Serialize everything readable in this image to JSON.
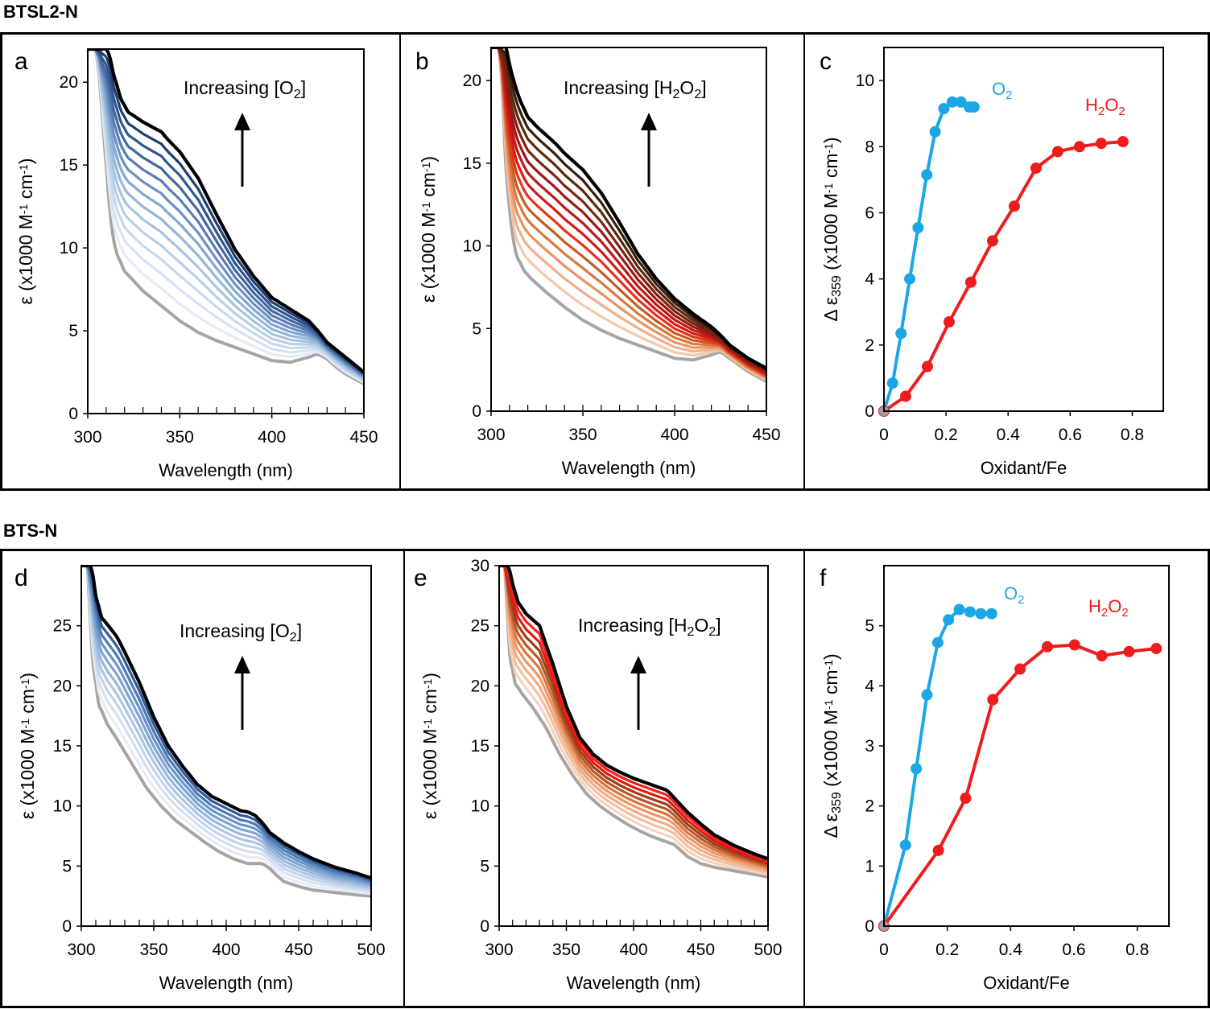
{
  "groups": [
    {
      "title": "BTSL2-N"
    },
    {
      "title": "BTS-N"
    }
  ],
  "colors": {
    "o2": "#1ba6e6",
    "h2o2": "#ee1c1c",
    "gray": "#a8a4a4",
    "black": "#000000"
  },
  "chart_data": [
    {
      "panel": "a",
      "type": "line",
      "xlabel": "Wavelength (nm)",
      "ylabel": "ε (x1000 M⁻¹ cm⁻¹)",
      "xlim": [
        300,
        450
      ],
      "ylim": [
        0,
        22
      ],
      "xticks": [
        "300",
        "350",
        "400",
        "450"
      ],
      "yticks": [
        "0",
        "5",
        "10",
        "15",
        "20"
      ],
      "annotation": {
        "text": "Increasing [O",
        "sub": "2",
        "close": "]"
      },
      "palette": [
        "#e4ebf6",
        "#d6e2f1",
        "#c8d9ec",
        "#b8cfe6",
        "#a6c3df",
        "#94b6d8",
        "#82a8d0",
        "#6e8fc2",
        "#5a7bb4",
        "#43679f",
        "#2d5790",
        "#1f3f70"
      ],
      "base": {
        "x": [
          305,
          310,
          313,
          316,
          320,
          325,
          330,
          340,
          350,
          360,
          370,
          380,
          390,
          400,
          410,
          420,
          425,
          430,
          435,
          440,
          450
        ],
        "y": [
          22,
          15,
          11,
          9.6,
          8.6,
          8,
          7.4,
          6.5,
          5.6,
          4.9,
          4.4,
          4,
          3.6,
          3.2,
          3.1,
          3.4,
          3.6,
          3.3,
          2.8,
          2.4,
          1.8
        ]
      },
      "top": {
        "x": [
          311,
          314,
          318,
          322,
          326,
          330,
          335,
          340,
          343,
          350,
          360,
          370,
          380,
          390,
          400,
          410,
          420,
          425,
          430,
          440,
          450
        ],
        "y": [
          22,
          20.5,
          19,
          18.2,
          17.9,
          17.6,
          17.3,
          17,
          16.6,
          15.8,
          14.2,
          12,
          9.9,
          8.3,
          7,
          6.3,
          5.6,
          5,
          4.3,
          3.4,
          2.5
        ]
      }
    },
    {
      "panel": "b",
      "type": "line",
      "xlabel": "Wavelength (nm)",
      "ylabel": "ε (x1000 M⁻¹ cm⁻¹)",
      "xlim": [
        300,
        450
      ],
      "ylim": [
        0,
        22
      ],
      "xticks": [
        "300",
        "350",
        "400",
        "450"
      ],
      "yticks": [
        "0",
        "5",
        "10",
        "15",
        "20"
      ],
      "annotation": {
        "text": "Increasing [H",
        "sub": "2",
        "mid": "O",
        "sub2": "2",
        "close": "]"
      },
      "palette": [
        "#f7c6ab",
        "#f2ad8a",
        "#ec9162",
        "#d8783e",
        "#c45a22",
        "#e8301b",
        "#d31a18",
        "#b81a1a",
        "#9c1717",
        "#7a2410",
        "#5a2a10",
        "#3a1c0c"
      ],
      "base": {
        "x": [
          305,
          308,
          311,
          314,
          318,
          322,
          330,
          340,
          350,
          360,
          370,
          380,
          390,
          400,
          410,
          420,
          425,
          430,
          440,
          450
        ],
        "y": [
          22,
          15,
          11,
          9.4,
          8.5,
          8,
          7.2,
          6.3,
          5.5,
          4.9,
          4.4,
          4,
          3.6,
          3.2,
          3.1,
          3.4,
          3.6,
          3.2,
          2.4,
          1.8
        ]
      },
      "top": {
        "x": [
          308,
          311,
          315,
          320,
          325,
          330,
          335,
          340,
          350,
          360,
          370,
          380,
          390,
          400,
          410,
          420,
          425,
          430,
          440,
          450
        ],
        "y": [
          22,
          20.5,
          19,
          17.8,
          17.2,
          16.7,
          16.2,
          15.6,
          14.6,
          13.2,
          11.4,
          9.5,
          8,
          6.8,
          5.9,
          5.1,
          4.6,
          4,
          3.2,
          2.6
        ]
      }
    },
    {
      "panel": "c",
      "type": "line",
      "xlabel": "Oxidant/Fe",
      "ylabel": "Δ ε₃₅₉ (x1000 M⁻¹ cm⁻¹)",
      "xlim": [
        0,
        0.9
      ],
      "ylim": [
        0,
        11
      ],
      "xticks": [
        "0",
        "0.2",
        "0.4",
        "0.6",
        "0.8"
      ],
      "yticks": [
        "0",
        "2",
        "4",
        "6",
        "8",
        "10"
      ],
      "series": [
        {
          "name": "O₂",
          "label": "O",
          "sub": "2",
          "color_key": "o2",
          "x": [
            0,
            0.028,
            0.055,
            0.083,
            0.11,
            0.138,
            0.165,
            0.193,
            0.22,
            0.248,
            0.275,
            0.29
          ],
          "y": [
            0,
            0.85,
            2.35,
            4.0,
            5.55,
            7.15,
            8.45,
            9.15,
            9.35,
            9.35,
            9.2,
            9.2
          ]
        },
        {
          "name": "H₂O₂",
          "label": "H",
          "sub": "2",
          "mid": "O",
          "sub2": "2",
          "color_key": "h2o2",
          "x": [
            0,
            0.07,
            0.14,
            0.21,
            0.28,
            0.35,
            0.42,
            0.49,
            0.56,
            0.63,
            0.7,
            0.77
          ],
          "y": [
            0,
            0.45,
            1.35,
            2.7,
            3.9,
            5.15,
            6.2,
            7.35,
            7.85,
            8.0,
            8.1,
            8.15
          ]
        }
      ]
    },
    {
      "panel": "d",
      "type": "line",
      "xlabel": "Wavelength (nm)",
      "ylabel": "ε (x1000 M⁻¹ cm⁻¹)",
      "xlim": [
        300,
        500
      ],
      "ylim": [
        0,
        30
      ],
      "xticks": [
        "300",
        "350",
        "400",
        "450",
        "500"
      ],
      "yticks": [
        "0",
        "5",
        "10",
        "15",
        "20",
        "25"
      ],
      "annotation": {
        "text": "Increasing [O",
        "sub": "2",
        "close": "]"
      },
      "palette": [
        "#e6ecf7",
        "#d4e0f1",
        "#c2d4ea",
        "#aec6e3",
        "#98b6db",
        "#80a5d2",
        "#6b94c8",
        "#4d79b5",
        "#2f5d99"
      ],
      "base": {
        "x": [
          304,
          308,
          312,
          318,
          325,
          335,
          345,
          355,
          365,
          375,
          385,
          395,
          405,
          415,
          425,
          430,
          435,
          440,
          450,
          460,
          475,
          490,
          500
        ],
        "y": [
          30,
          22,
          18.5,
          16.8,
          15.5,
          13.5,
          11.5,
          10,
          8.8,
          7.9,
          7,
          6.2,
          5.6,
          5.2,
          5.2,
          4.8,
          4.2,
          3.7,
          3.3,
          3,
          2.8,
          2.6,
          2.5
        ]
      },
      "top": {
        "x": [
          307,
          310,
          314,
          320,
          325,
          330,
          340,
          350,
          360,
          370,
          380,
          390,
          400,
          410,
          415,
          420,
          425,
          430,
          440,
          450,
          460,
          475,
          490,
          500
        ],
        "y": [
          30,
          27.5,
          25.7,
          24.8,
          24,
          22.8,
          20.3,
          17.4,
          15,
          13.3,
          11.8,
          10.8,
          10.2,
          9.6,
          9.5,
          9.2,
          8.6,
          7.8,
          6.9,
          6.2,
          5.6,
          4.9,
          4.4,
          4.0
        ]
      }
    },
    {
      "panel": "e",
      "type": "line",
      "xlabel": "Wavelength (nm)",
      "ylabel": "ε (x1000 M⁻¹ cm⁻¹)",
      "xlim": [
        300,
        500
      ],
      "ylim": [
        0,
        30
      ],
      "xticks": [
        "300",
        "350",
        "400",
        "450",
        "500"
      ],
      "yticks": [
        "0",
        "5",
        "10",
        "15",
        "20",
        "25",
        "30"
      ],
      "annotation": {
        "text": "Increasing [H",
        "sub": "2",
        "mid": "O",
        "sub2": "2",
        "close": "]"
      },
      "palette": [
        "#f8d2bc",
        "#f4bf9f",
        "#efac84",
        "#e8986a",
        "#d9753f",
        "#b8552a",
        "#9a3e1a",
        "#e01a14",
        "#ff1e1e"
      ],
      "base": {
        "x": [
          304,
          308,
          312,
          318,
          325,
          335,
          345,
          355,
          365,
          375,
          385,
          395,
          405,
          415,
          425,
          430,
          435,
          440,
          450,
          460,
          475,
          490,
          500
        ],
        "y": [
          30,
          22.5,
          20.2,
          19.2,
          18.2,
          16.5,
          14.3,
          12.5,
          11,
          10,
          9.2,
          8.5,
          7.9,
          7.4,
          7,
          6.8,
          6.3,
          5.8,
          5.2,
          4.9,
          4.6,
          4.3,
          4.1
        ]
      },
      "top": {
        "x": [
          307,
          310,
          314,
          320,
          325,
          330,
          340,
          350,
          360,
          370,
          380,
          390,
          400,
          410,
          420,
          425,
          430,
          440,
          450,
          460,
          475,
          490,
          500
        ],
        "y": [
          30,
          28.5,
          27,
          26,
          25.5,
          25,
          21.8,
          18.3,
          15.7,
          14.3,
          13.4,
          12.8,
          12.3,
          11.9,
          11.5,
          11.3,
          10.7,
          9.5,
          8.5,
          7.6,
          6.7,
          6.0,
          5.6
        ]
      }
    },
    {
      "panel": "f",
      "type": "line",
      "xlabel": "Oxidant/Fe",
      "ylabel": "Δ ε₃₅₉ (x1000 M⁻¹ cm⁻¹)",
      "xlim": [
        0,
        0.9
      ],
      "ylim": [
        0,
        6
      ],
      "xticks": [
        "0",
        "0.2",
        "0.4",
        "0.6",
        "0.8"
      ],
      "yticks": [
        "0",
        "1",
        "2",
        "3",
        "4",
        "5"
      ],
      "series": [
        {
          "name": "O₂",
          "label": "O",
          "sub": "2",
          "color_key": "o2",
          "x": [
            0,
            0.068,
            0.102,
            0.136,
            0.17,
            0.204,
            0.238,
            0.272,
            0.306,
            0.34
          ],
          "y": [
            0,
            1.35,
            2.62,
            3.85,
            4.72,
            5.1,
            5.27,
            5.23,
            5.2,
            5.2
          ]
        },
        {
          "name": "H₂O₂",
          "label": "H",
          "sub": "2",
          "mid": "O",
          "sub2": "2",
          "color_key": "h2o2",
          "x": [
            0,
            0.172,
            0.258,
            0.344,
            0.43,
            0.516,
            0.602,
            0.688,
            0.774,
            0.86
          ],
          "y": [
            0,
            1.26,
            2.13,
            3.77,
            4.28,
            4.65,
            4.68,
            4.5,
            4.57,
            4.62
          ]
        }
      ]
    }
  ]
}
